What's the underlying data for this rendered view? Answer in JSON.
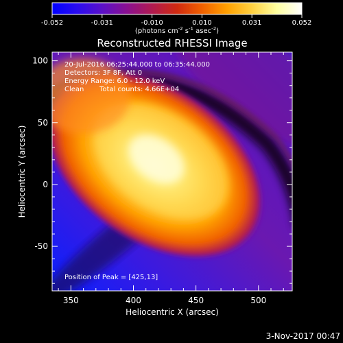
{
  "colorbar": {
    "ticks": [
      "-0.052",
      "-0.031",
      "-0.010",
      "0.010",
      "0.031",
      "0.052"
    ],
    "unit_label_main": "(photons cm",
    "unit_sup1": "-2",
    "unit_s": " s",
    "unit_sup2": "-1",
    "unit_asec": " asec",
    "unit_sup3": "-2",
    "unit_close": ")",
    "colors": [
      "#0000ff",
      "#2a0cf0",
      "#5a10c8",
      "#8a1090",
      "#b01a50",
      "#d02a10",
      "#f06000",
      "#ffa000",
      "#ffd040",
      "#ffffa0",
      "#ffffff"
    ]
  },
  "chart_data": {
    "type": "heatmap",
    "title": "Reconstructed RHESSI Image",
    "xlabel": "Heliocentric X (arcsec)",
    "ylabel": "Heliocentric Y (arcsec)",
    "xlim": [
      335,
      527
    ],
    "ylim": [
      -86,
      107
    ],
    "xticks": [
      "350",
      "400",
      "450",
      "500"
    ],
    "yticks": [
      "100",
      "50",
      "0",
      "-50"
    ],
    "xtick_values": [
      350,
      400,
      450,
      500
    ],
    "ytick_values": [
      100,
      50,
      0,
      -50
    ],
    "peak": [
      425,
      13
    ],
    "annotations": [
      "20-Jul-2016 06:25:44.000 to 06:35:44.000",
      "Detectors: 3F 8F, Att 0",
      "Energy Range: 6.0 - 12.0 keV",
      "Clean",
      "Total counts: 4.66E+04"
    ],
    "peak_label": "Position of Peak = [425,13]"
  },
  "footer": {
    "date": "3-Nov-2017 00:47"
  }
}
